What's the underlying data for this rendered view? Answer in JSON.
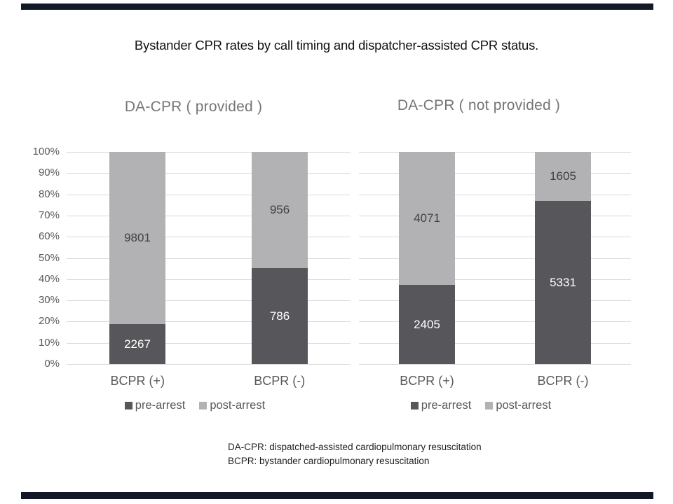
{
  "page": {
    "title": "Bystander CPR rates by call timing and dispatcher-assisted CPR status."
  },
  "colors": {
    "pre_arrest": "#57565a",
    "post_arrest": "#b2b1b4",
    "gridline": "#d9d9d9",
    "axis_text": "#595959",
    "chart_title_text": "#757575",
    "label_on_dark": "#ffffff",
    "label_on_light": "#3f3f44",
    "accent_bar": "#131826"
  },
  "legend": {
    "pre_label": "pre-arrest",
    "post_label": "post-arrest"
  },
  "footnotes": [
    "DA-CPR: dispatched-assisted cardiopulmonary resuscitation",
    "BCPR: bystander cardiopulmonary resuscitation"
  ],
  "chart_data": [
    {
      "type": "bar",
      "stacked": true,
      "normalized_percent": true,
      "title": "DA-CPR ( provided )",
      "categories": [
        "BCPR (+)",
        "BCPR (-)"
      ],
      "series": [
        {
          "name": "pre-arrest",
          "values": [
            2267,
            786
          ]
        },
        {
          "name": "post-arrest",
          "values": [
            9801,
            956
          ]
        }
      ],
      "ylim": [
        0,
        100
      ],
      "yticks": [
        "0%",
        "10%",
        "20%",
        "30%",
        "40%",
        "50%",
        "60%",
        "70%",
        "80%",
        "90%",
        "100%"
      ],
      "grid": true,
      "show_y_axis_labels": true,
      "legend_position": "bottom"
    },
    {
      "type": "bar",
      "stacked": true,
      "normalized_percent": true,
      "title": "DA-CPR ( not provided )",
      "categories": [
        "BCPR (+)",
        "BCPR (-)"
      ],
      "series": [
        {
          "name": "pre-arrest",
          "values": [
            2405,
            5331
          ]
        },
        {
          "name": "post-arrest",
          "values": [
            4071,
            1605
          ]
        }
      ],
      "ylim": [
        0,
        100
      ],
      "yticks": [
        "0%",
        "10%",
        "20%",
        "30%",
        "40%",
        "50%",
        "60%",
        "70%",
        "80%",
        "90%",
        "100%"
      ],
      "grid": true,
      "show_y_axis_labels": false,
      "legend_position": "bottom"
    }
  ]
}
